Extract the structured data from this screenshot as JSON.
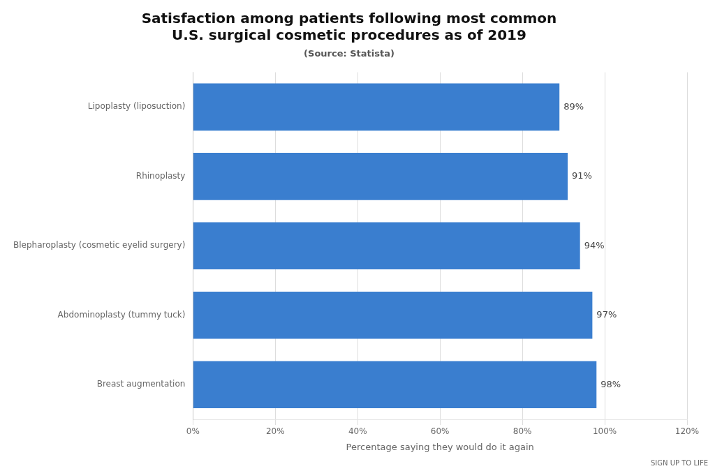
{
  "chart_data": {
    "type": "bar",
    "orientation": "horizontal",
    "title": "Satisfaction among patients following most common\nU.S. surgical cosmetic procedures as of 2019",
    "subtitle": "(Source: Statista)",
    "categories": [
      "Lipoplasty (liposuction)",
      "Rhinoplasty",
      "Blepharoplasty (cosmetic eyelid surgery)",
      "Abdominoplasty (tummy tuck)",
      "Breast augmentation"
    ],
    "values": [
      89,
      91,
      94,
      97,
      98
    ],
    "value_labels": [
      "89%",
      "91%",
      "94%",
      "97%",
      "98%"
    ],
    "data_labels": true,
    "color": "#3a7ecf",
    "xlabel": "Percentage saying they would do it again",
    "xlim": [
      0,
      120
    ],
    "xticks": [
      {
        "value": 0,
        "label": "0%"
      },
      {
        "value": 20,
        "label": "20%"
      },
      {
        "value": 40,
        "label": "40%"
      },
      {
        "value": 60,
        "label": "60%"
      },
      {
        "value": 80,
        "label": "80%"
      },
      {
        "value": 100,
        "label": "100%"
      },
      {
        "value": 120,
        "label": "120%"
      }
    ],
    "grid": true,
    "annotations": [
      "SIGN UP TO LIFE"
    ]
  }
}
